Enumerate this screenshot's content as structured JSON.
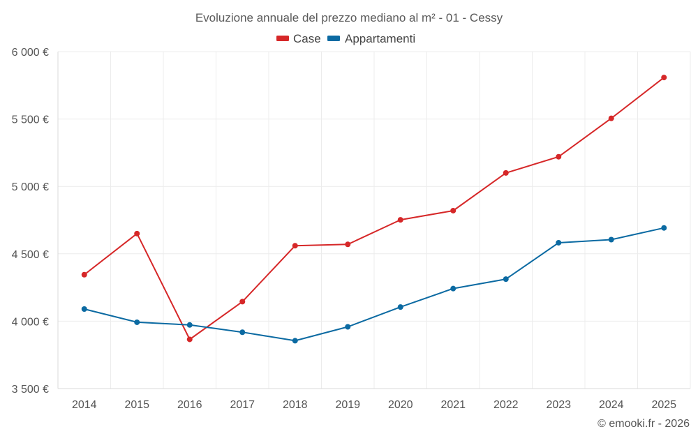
{
  "chart_data": {
    "type": "line",
    "title": "Evoluzione annuale del prezzo mediano al m² - 01 - Cessy",
    "xlabel": "",
    "ylabel": "",
    "categories": [
      "2014",
      "2015",
      "2016",
      "2017",
      "2018",
      "2019",
      "2020",
      "2021",
      "2022",
      "2023",
      "2024",
      "2025"
    ],
    "series": [
      {
        "name": "Case",
        "color": "#d62728",
        "values": [
          4345,
          4650,
          3865,
          4145,
          4560,
          4570,
          4752,
          4820,
          5100,
          5220,
          5505,
          5808
        ]
      },
      {
        "name": "Appartamenti",
        "color": "#0b6aa2",
        "values": [
          4090,
          3992,
          3972,
          3918,
          3855,
          3958,
          4105,
          4242,
          4312,
          4582,
          4605,
          4692
        ]
      }
    ],
    "ylim": [
      3500,
      6000
    ],
    "yticks": [
      3500,
      4000,
      4500,
      5000,
      5500,
      6000
    ],
    "ytick_labels": [
      "3 500 €",
      "4 000 €",
      "4 500 €",
      "5 000 €",
      "5 500 €",
      "6 000 €"
    ],
    "legend": "top-center",
    "grid": true
  },
  "credit": "© emooki.fr - 2026"
}
